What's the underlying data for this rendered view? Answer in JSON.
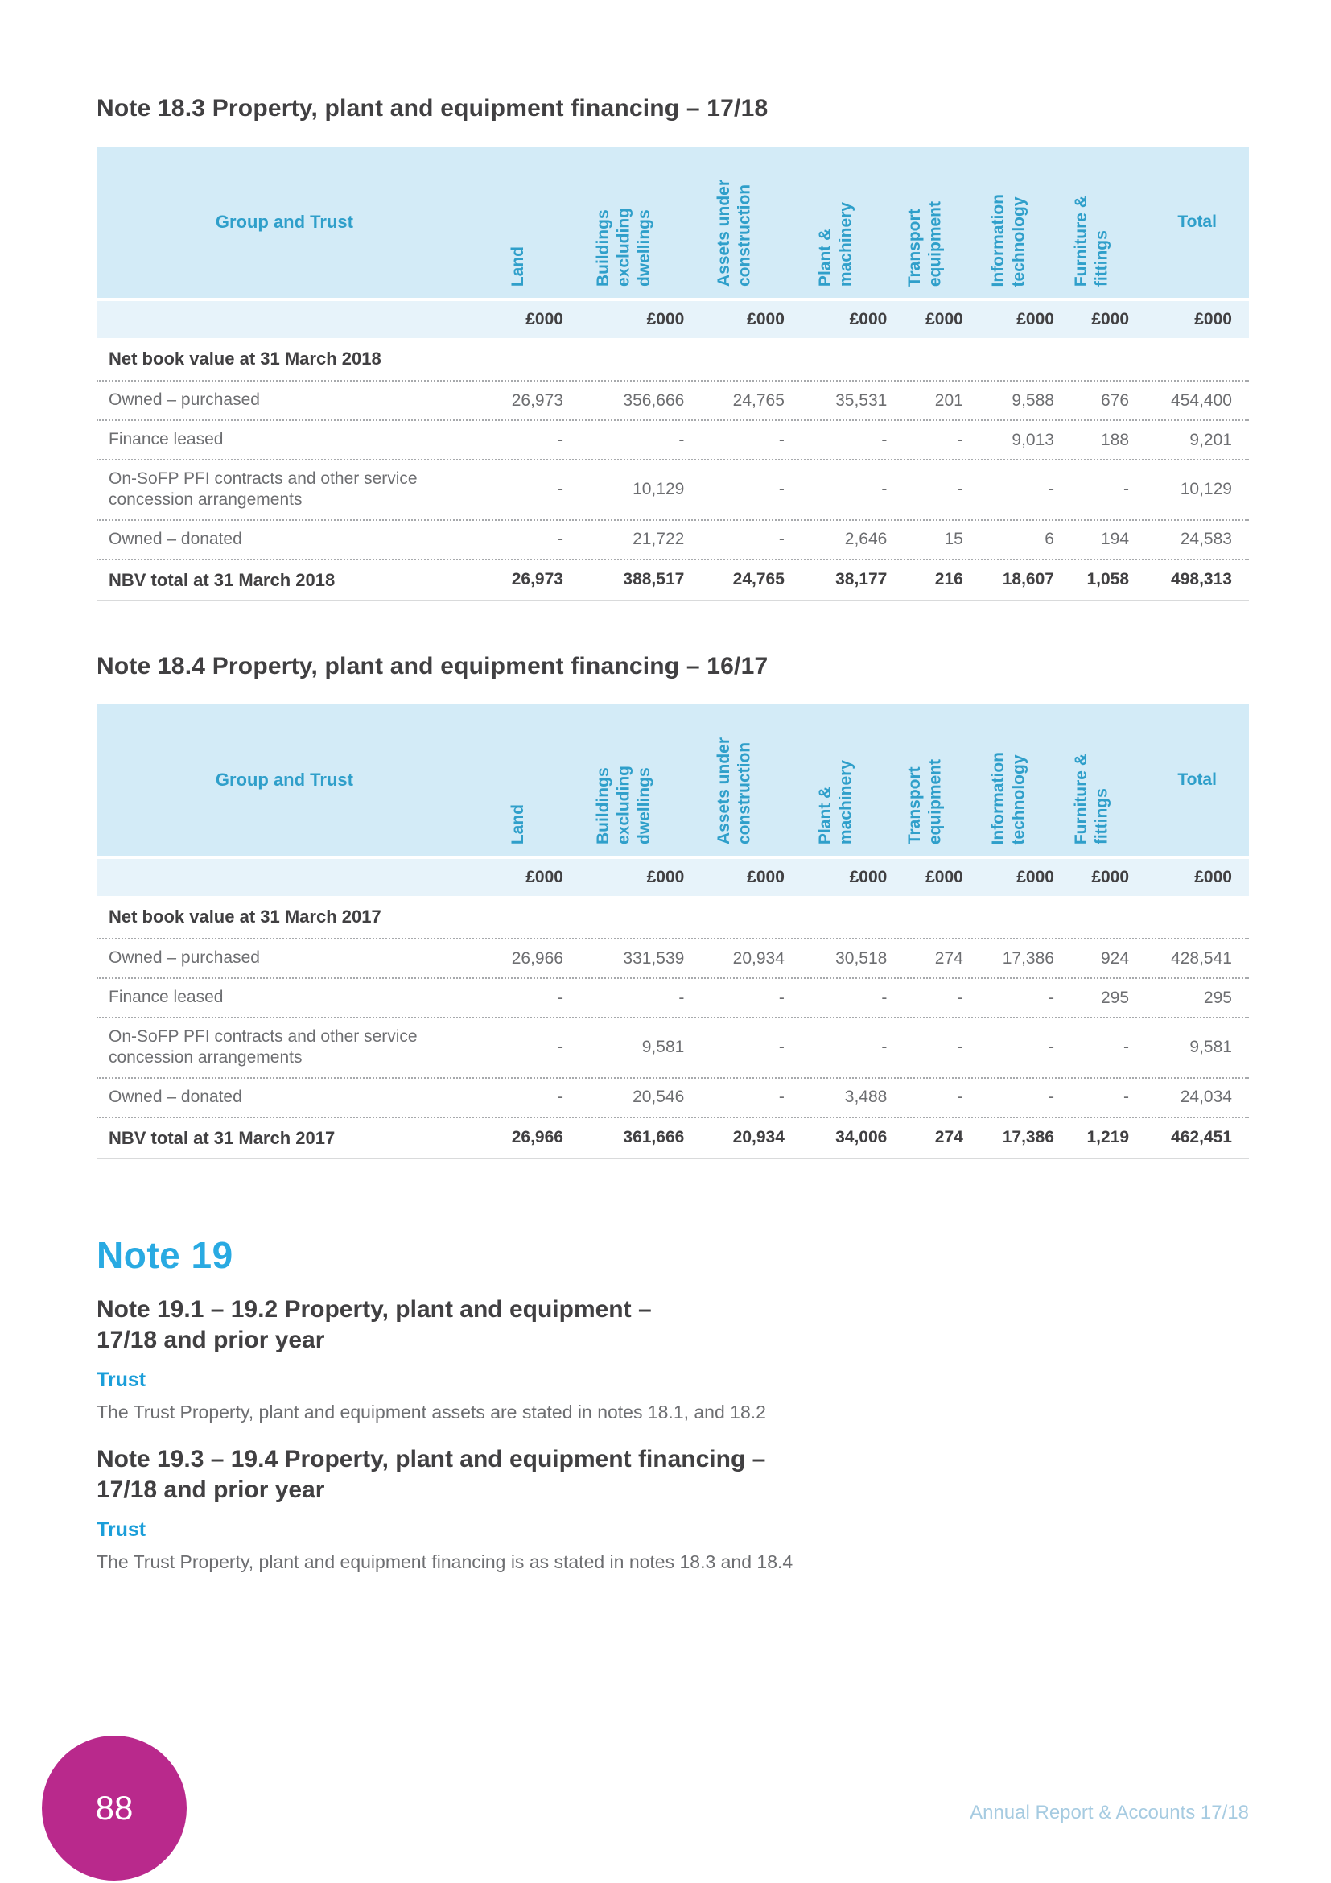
{
  "colors": {
    "header_bg": "#d3ebf7",
    "unit_bg": "#e7f3fa",
    "header_text": "#2f9fca",
    "dark_text": "#414042",
    "body_text": "#6d6e71",
    "note_blue": "#29aae2",
    "trust_blue": "#1b9ed9",
    "circle_bg": "#b9298c",
    "footer_text": "#a6cbe1"
  },
  "page": {
    "number": "88",
    "footer": "Annual Report & Accounts 17/18"
  },
  "tables": [
    {
      "title": "Note 18.3 Property, plant and equipment financing – 17/18",
      "corner_label": "Group and Trust",
      "unit_label": "£000",
      "columns": [
        {
          "label": "Land",
          "rotated": true
        },
        {
          "label": "Buildings\nexcluding\ndwellings",
          "rotated": true
        },
        {
          "label": "Assets under\nconstruction",
          "rotated": true
        },
        {
          "label": "Plant &\nmachinery",
          "rotated": true
        },
        {
          "label": "Transport\nequipment",
          "rotated": true
        },
        {
          "label": "Information\ntechnology",
          "rotated": true
        },
        {
          "label": "Furniture &\nfittings",
          "rotated": true
        },
        {
          "label": "Total",
          "rotated": false
        }
      ],
      "section_row": "Net book value at 31 March 2018",
      "rows": [
        {
          "label": "Owned – purchased",
          "values": [
            "26,973",
            "356,666",
            "24,765",
            "35,531",
            "201",
            "9,588",
            "676",
            "454,400"
          ]
        },
        {
          "label": "Finance leased",
          "values": [
            "-",
            "-",
            "-",
            "-",
            "-",
            "9,013",
            "188",
            "9,201"
          ]
        },
        {
          "label": "On-SoFP PFI contracts and other service concession arrangements",
          "values": [
            "-",
            "10,129",
            "-",
            "-",
            "-",
            "-",
            "-",
            "10,129"
          ]
        },
        {
          "label": "Owned – donated",
          "values": [
            "-",
            "21,722",
            "-",
            "2,646",
            "15",
            "6",
            "194",
            "24,583"
          ]
        }
      ],
      "total_row": {
        "label": "NBV total at 31 March 2018",
        "values": [
          "26,973",
          "388,517",
          "24,765",
          "38,177",
          "216",
          "18,607",
          "1,058",
          "498,313"
        ]
      }
    },
    {
      "title": "Note 18.4 Property, plant and equipment financing – 16/17",
      "corner_label": "Group and Trust",
      "unit_label": "£000",
      "columns": [
        {
          "label": "Land",
          "rotated": true
        },
        {
          "label": "Buildings\nexcluding\ndwellings",
          "rotated": true
        },
        {
          "label": "Assets under\nconstruction",
          "rotated": true
        },
        {
          "label": "Plant &\nmachinery",
          "rotated": true
        },
        {
          "label": "Transport\nequipment",
          "rotated": true
        },
        {
          "label": "Information\ntechnology",
          "rotated": true
        },
        {
          "label": "Furniture &\nfittings",
          "rotated": true
        },
        {
          "label": "Total",
          "rotated": false
        }
      ],
      "section_row": "Net book value at 31 March 2017",
      "rows": [
        {
          "label": "Owned – purchased",
          "values": [
            "26,966",
            "331,539",
            "20,934",
            "30,518",
            "274",
            "17,386",
            "924",
            "428,541"
          ]
        },
        {
          "label": "Finance leased",
          "values": [
            "-",
            "-",
            "-",
            "-",
            "-",
            "-",
            "295",
            "295"
          ]
        },
        {
          "label": "On-SoFP PFI contracts and other service concession arrangements",
          "values": [
            "-",
            "9,581",
            "-",
            "-",
            "-",
            "-",
            "-",
            "9,581"
          ]
        },
        {
          "label": "Owned – donated",
          "values": [
            "-",
            "20,546",
            "-",
            "3,488",
            "-",
            "-",
            "-",
            "24,034"
          ]
        }
      ],
      "total_row": {
        "label": "NBV total at 31 March 2017",
        "values": [
          "26,966",
          "361,666",
          "20,934",
          "34,006",
          "274",
          "17,386",
          "1,219",
          "462,451"
        ]
      }
    }
  ],
  "note19": {
    "title": "Note 19",
    "sub1_title": "Note 19.1 – 19.2 Property, plant and equipment –\n17/18 and prior year",
    "trust1": "Trust",
    "body1": "The Trust Property, plant and equipment assets are stated in notes 18.1, and 18.2",
    "sub2_title": "Note 19.3 – 19.4 Property, plant and equipment financing –\n17/18 and prior year",
    "trust2": "Trust",
    "body2": "The Trust Property, plant and equipment financing is as stated in notes 18.3 and 18.4"
  }
}
